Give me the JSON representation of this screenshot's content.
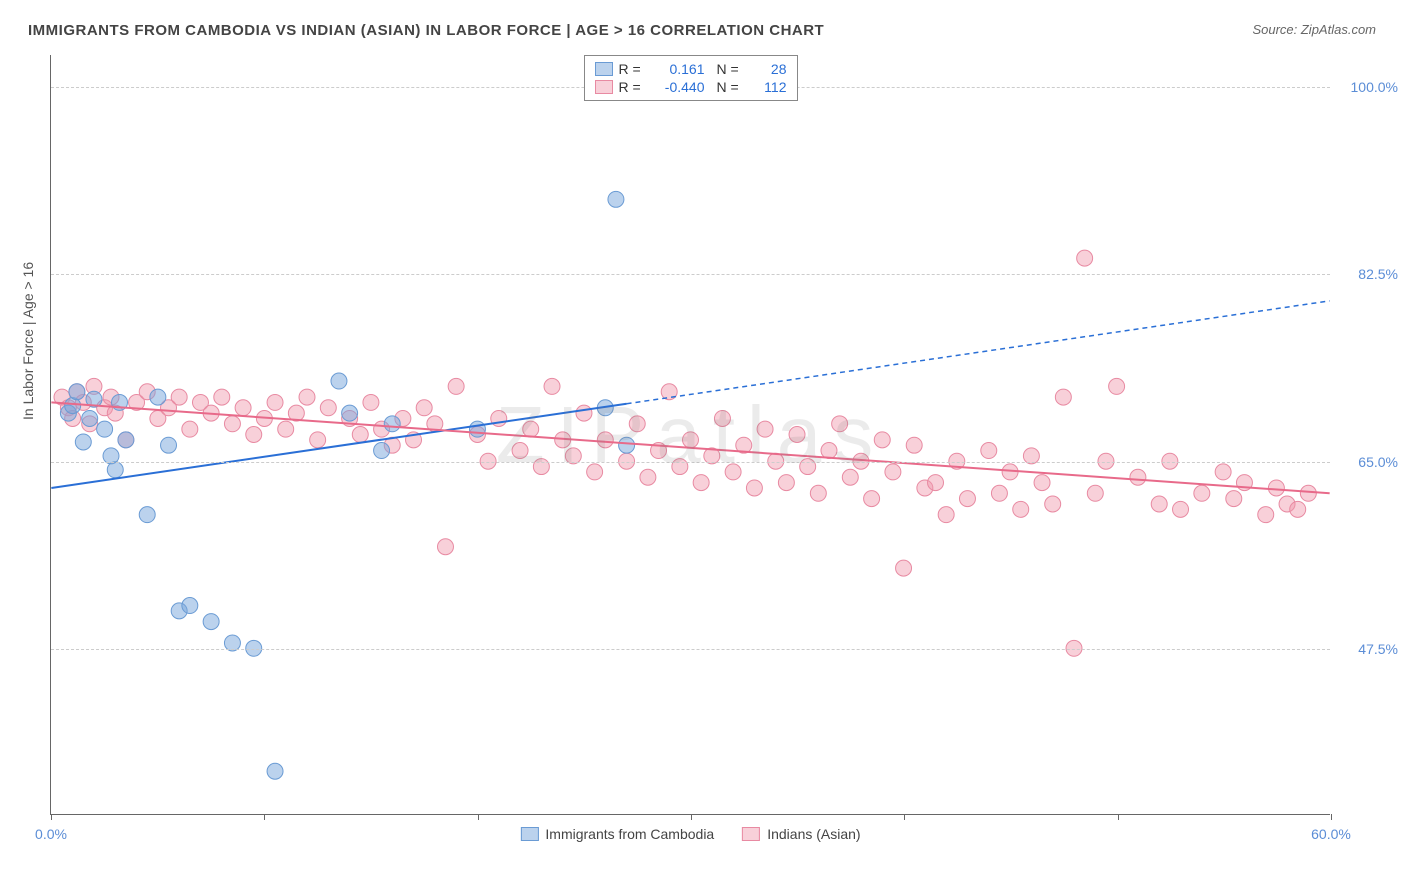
{
  "title": "IMMIGRANTS FROM CAMBODIA VS INDIAN (ASIAN) IN LABOR FORCE | AGE > 16 CORRELATION CHART",
  "source": "Source: ZipAtlas.com",
  "ylabel": "In Labor Force | Age > 16",
  "watermark": "ZIPatlas",
  "chart": {
    "type": "scatter",
    "xlim": [
      0,
      60
    ],
    "ylim": [
      32,
      103
    ],
    "x_ticks": [
      0,
      10,
      20,
      30,
      40,
      50,
      60
    ],
    "x_tick_labels": {
      "0": "0.0%",
      "60": "60.0%"
    },
    "y_ticks": [
      47.5,
      65.0,
      82.5,
      100.0
    ],
    "y_tick_labels": [
      "47.5%",
      "65.0%",
      "82.5%",
      "100.0%"
    ],
    "grid_color": "#cccccc",
    "background_color": "#ffffff",
    "axis_color": "#666666",
    "tick_label_color": "#5b8dd6"
  },
  "series": [
    {
      "name": "Immigrants from Cambodia",
      "color_fill": "rgba(120,165,220,0.5)",
      "color_stroke": "#6a9bd4",
      "line_color": "#2a6fd6",
      "line_width": 2,
      "marker_r": 8,
      "R": "0.161",
      "N": "28",
      "trend": {
        "x1": 0,
        "y1": 62.5,
        "x2": 27,
        "y2": 70.5,
        "x2_ext": 60,
        "y2_ext": 80.0,
        "dash_after": 27
      },
      "points": [
        [
          0.8,
          69.5
        ],
        [
          1.0,
          70.2
        ],
        [
          1.2,
          71.5
        ],
        [
          1.5,
          66.8
        ],
        [
          1.8,
          69.0
        ],
        [
          2.0,
          70.8
        ],
        [
          2.5,
          68.0
        ],
        [
          2.8,
          65.5
        ],
        [
          3.0,
          64.2
        ],
        [
          3.2,
          70.5
        ],
        [
          3.5,
          67.0
        ],
        [
          4.5,
          60.0
        ],
        [
          5.0,
          71.0
        ],
        [
          5.5,
          66.5
        ],
        [
          6.0,
          51.0
        ],
        [
          6.5,
          51.5
        ],
        [
          7.5,
          50.0
        ],
        [
          8.5,
          48.0
        ],
        [
          9.5,
          47.5
        ],
        [
          10.5,
          36.0
        ],
        [
          13.5,
          72.5
        ],
        [
          14.0,
          69.5
        ],
        [
          15.5,
          66.0
        ],
        [
          16.0,
          68.5
        ],
        [
          20.0,
          68.0
        ],
        [
          26.0,
          70.0
        ],
        [
          26.5,
          89.5
        ],
        [
          27.0,
          66.5
        ]
      ]
    },
    {
      "name": "Indians (Asian)",
      "color_fill": "rgba(240,150,170,0.45)",
      "color_stroke": "#e88aa2",
      "line_color": "#e86a8a",
      "line_width": 2,
      "marker_r": 8,
      "R": "-0.440",
      "N": "112",
      "trend": {
        "x1": 0,
        "y1": 70.5,
        "x2": 60,
        "y2": 62.0
      },
      "points": [
        [
          0.5,
          71.0
        ],
        [
          0.8,
          70.0
        ],
        [
          1.0,
          69.0
        ],
        [
          1.2,
          71.5
        ],
        [
          1.5,
          70.5
        ],
        [
          1.8,
          68.5
        ],
        [
          2.0,
          72.0
        ],
        [
          2.5,
          70.0
        ],
        [
          2.8,
          71.0
        ],
        [
          3.0,
          69.5
        ],
        [
          3.5,
          67.0
        ],
        [
          4.0,
          70.5
        ],
        [
          4.5,
          71.5
        ],
        [
          5.0,
          69.0
        ],
        [
          5.5,
          70.0
        ],
        [
          6.0,
          71.0
        ],
        [
          6.5,
          68.0
        ],
        [
          7.0,
          70.5
        ],
        [
          7.5,
          69.5
        ],
        [
          8.0,
          71.0
        ],
        [
          8.5,
          68.5
        ],
        [
          9.0,
          70.0
        ],
        [
          9.5,
          67.5
        ],
        [
          10.0,
          69.0
        ],
        [
          10.5,
          70.5
        ],
        [
          11.0,
          68.0
        ],
        [
          11.5,
          69.5
        ],
        [
          12.0,
          71.0
        ],
        [
          12.5,
          67.0
        ],
        [
          13.0,
          70.0
        ],
        [
          14.0,
          69.0
        ],
        [
          14.5,
          67.5
        ],
        [
          15.0,
          70.5
        ],
        [
          15.5,
          68.0
        ],
        [
          16.0,
          66.5
        ],
        [
          16.5,
          69.0
        ],
        [
          17.0,
          67.0
        ],
        [
          17.5,
          70.0
        ],
        [
          18.0,
          68.5
        ],
        [
          18.5,
          57.0
        ],
        [
          19.0,
          72.0
        ],
        [
          20.0,
          67.5
        ],
        [
          20.5,
          65.0
        ],
        [
          21.0,
          69.0
        ],
        [
          22.0,
          66.0
        ],
        [
          22.5,
          68.0
        ],
        [
          23.0,
          64.5
        ],
        [
          23.5,
          72.0
        ],
        [
          24.0,
          67.0
        ],
        [
          24.5,
          65.5
        ],
        [
          25.0,
          69.5
        ],
        [
          25.5,
          64.0
        ],
        [
          26.0,
          67.0
        ],
        [
          27.0,
          65.0
        ],
        [
          27.5,
          68.5
        ],
        [
          28.0,
          63.5
        ],
        [
          28.5,
          66.0
        ],
        [
          29.0,
          71.5
        ],
        [
          29.5,
          64.5
        ],
        [
          30.0,
          67.0
        ],
        [
          30.5,
          63.0
        ],
        [
          31.0,
          65.5
        ],
        [
          31.5,
          69.0
        ],
        [
          32.0,
          64.0
        ],
        [
          32.5,
          66.5
        ],
        [
          33.0,
          62.5
        ],
        [
          33.5,
          68.0
        ],
        [
          34.0,
          65.0
        ],
        [
          34.5,
          63.0
        ],
        [
          35.0,
          67.5
        ],
        [
          35.5,
          64.5
        ],
        [
          36.0,
          62.0
        ],
        [
          36.5,
          66.0
        ],
        [
          37.0,
          68.5
        ],
        [
          37.5,
          63.5
        ],
        [
          38.0,
          65.0
        ],
        [
          38.5,
          61.5
        ],
        [
          39.0,
          67.0
        ],
        [
          39.5,
          64.0
        ],
        [
          40.0,
          55.0
        ],
        [
          40.5,
          66.5
        ],
        [
          41.0,
          62.5
        ],
        [
          41.5,
          63.0
        ],
        [
          42.0,
          60.0
        ],
        [
          42.5,
          65.0
        ],
        [
          43.0,
          61.5
        ],
        [
          44.0,
          66.0
        ],
        [
          44.5,
          62.0
        ],
        [
          45.0,
          64.0
        ],
        [
          45.5,
          60.5
        ],
        [
          46.0,
          65.5
        ],
        [
          46.5,
          63.0
        ],
        [
          47.0,
          61.0
        ],
        [
          47.5,
          71.0
        ],
        [
          48.0,
          47.5
        ],
        [
          48.5,
          84.0
        ],
        [
          49.0,
          62.0
        ],
        [
          49.5,
          65.0
        ],
        [
          50.0,
          72.0
        ],
        [
          51.0,
          63.5
        ],
        [
          52.0,
          61.0
        ],
        [
          52.5,
          65.0
        ],
        [
          53.0,
          60.5
        ],
        [
          54.0,
          62.0
        ],
        [
          55.0,
          64.0
        ],
        [
          55.5,
          61.5
        ],
        [
          56.0,
          63.0
        ],
        [
          57.0,
          60.0
        ],
        [
          57.5,
          62.5
        ],
        [
          58.0,
          61.0
        ],
        [
          58.5,
          60.5
        ],
        [
          59.0,
          62.0
        ]
      ]
    }
  ],
  "legend_bottom": [
    {
      "label": "Immigrants from Cambodia",
      "fill": "rgba(120,165,220,0.5)",
      "stroke": "#6a9bd4"
    },
    {
      "label": "Indians (Asian)",
      "fill": "rgba(240,150,170,0.45)",
      "stroke": "#e88aa2"
    }
  ]
}
